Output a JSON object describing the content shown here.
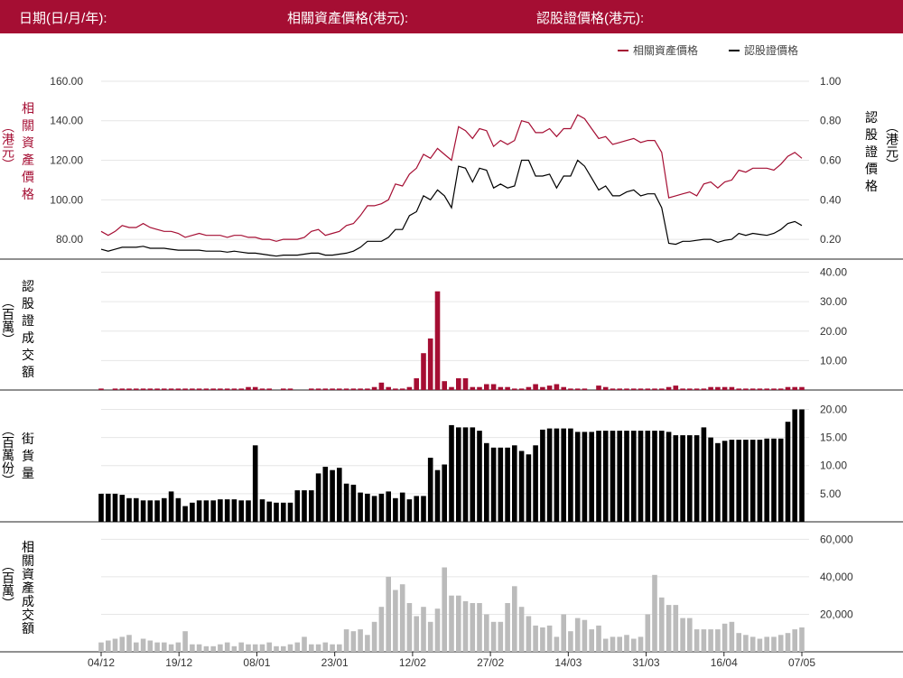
{
  "header": {
    "date_label": "日期(日/月/年):",
    "underlying_label": "相關資產價格(港元):",
    "warrant_label": "認股證價格(港元):"
  },
  "legend": {
    "underlying": "相關資產價格",
    "warrant": "認股證價格"
  },
  "colors": {
    "header_bg": "#a50e33",
    "underlying": "#a50e33",
    "warrant": "#000000",
    "turnover_bar": "#a50e33",
    "outstanding_bar": "#000000",
    "underlying_turnover_bar": "#bbbbbb"
  },
  "panel_labels": {
    "price_left": [
      "相",
      "關",
      "資",
      "產",
      "價",
      "格"
    ],
    "price_left_unit": "（港元）",
    "price_right": [
      "認",
      "股",
      "證",
      "價",
      "格"
    ],
    "price_right_unit": "（港元）",
    "turnover": [
      "認",
      "股",
      "證",
      "成",
      "交",
      "額"
    ],
    "turnover_unit": "（百萬）",
    "outstanding": [
      "街",
      "貨",
      "量"
    ],
    "outstanding_unit": "（百萬份）",
    "underlying_turnover": [
      "相",
      "關",
      "資",
      "產",
      "成",
      "交",
      "額"
    ],
    "underlying_turnover_unit": "（百萬）"
  },
  "chart_data": {
    "type": "line",
    "x_tick_labels": [
      "04/12",
      "19/12",
      "08/01",
      "23/01",
      "12/02",
      "27/02",
      "14/03",
      "31/03",
      "16/04",
      "07/05"
    ],
    "price_left_ticks": [
      "160.00",
      "140.00",
      "120.00",
      "100.00",
      "80.00"
    ],
    "price_left_range": [
      70,
      165
    ],
    "price_right_ticks": [
      "1.00",
      "0.80",
      "0.60",
      "0.40",
      "0.20"
    ],
    "price_right_range": [
      0.1,
      1.05
    ],
    "turnover_ticks": [
      "40.00",
      "30.00",
      "20.00",
      "10.00"
    ],
    "turnover_range": [
      0,
      42
    ],
    "outstanding_ticks": [
      "20.00",
      "15.00",
      "10.00",
      "5.00"
    ],
    "outstanding_range": [
      0,
      22
    ],
    "underlying_turnover_ticks": [
      "60,000",
      "40,000",
      "20,000"
    ],
    "underlying_turnover_range": [
      0,
      65000
    ],
    "underlying_price": [
      84,
      82,
      84,
      87,
      86,
      86,
      88,
      86,
      85,
      84,
      84,
      83,
      81,
      82,
      83,
      82,
      82,
      82,
      81,
      82,
      82,
      81,
      81,
      80,
      80,
      79,
      80,
      80,
      80,
      81,
      84,
      85,
      82,
      83,
      84,
      87,
      88,
      92,
      97,
      97,
      98,
      100,
      108,
      107,
      113,
      116,
      123,
      121,
      126,
      123,
      120,
      137,
      135,
      131,
      136,
      135,
      127,
      130,
      128,
      130,
      140,
      139,
      134,
      134,
      136,
      132,
      136,
      136,
      143,
      141,
      136,
      131,
      132,
      128,
      129,
      130,
      131,
      129,
      130,
      130,
      124,
      101,
      102,
      103,
      104,
      102,
      108,
      109,
      106,
      109,
      110,
      115,
      114,
      116,
      116,
      116,
      115,
      118,
      122,
      124,
      121
    ],
    "warrant_price": [
      0.15,
      0.14,
      0.15,
      0.16,
      0.16,
      0.16,
      0.165,
      0.155,
      0.155,
      0.155,
      0.15,
      0.145,
      0.145,
      0.145,
      0.145,
      0.14,
      0.14,
      0.14,
      0.135,
      0.14,
      0.135,
      0.13,
      0.13,
      0.125,
      0.12,
      0.115,
      0.12,
      0.12,
      0.12,
      0.125,
      0.13,
      0.13,
      0.12,
      0.12,
      0.125,
      0.13,
      0.14,
      0.16,
      0.19,
      0.19,
      0.19,
      0.21,
      0.25,
      0.25,
      0.32,
      0.34,
      0.42,
      0.4,
      0.45,
      0.42,
      0.36,
      0.57,
      0.56,
      0.49,
      0.56,
      0.55,
      0.46,
      0.48,
      0.46,
      0.47,
      0.6,
      0.6,
      0.52,
      0.52,
      0.53,
      0.46,
      0.52,
      0.52,
      0.6,
      0.57,
      0.51,
      0.45,
      0.47,
      0.42,
      0.42,
      0.44,
      0.45,
      0.42,
      0.43,
      0.43,
      0.36,
      0.18,
      0.175,
      0.19,
      0.19,
      0.195,
      0.2,
      0.2,
      0.185,
      0.195,
      0.2,
      0.23,
      0.22,
      0.23,
      0.225,
      0.22,
      0.23,
      0.25,
      0.28,
      0.29,
      0.27
    ],
    "warrant_turnover": [
      0.5,
      0,
      0.5,
      0.5,
      0.5,
      0.5,
      0.5,
      0.5,
      0.5,
      0.5,
      0.5,
      0.5,
      0.5,
      0.5,
      0.5,
      0.5,
      0.5,
      0.5,
      0.5,
      0.5,
      0.5,
      1,
      1,
      0.5,
      0.5,
      0,
      0.5,
      0.5,
      0,
      0,
      0.5,
      0.5,
      0.5,
      0.5,
      0.5,
      0.5,
      0.5,
      0.5,
      0.5,
      1,
      2.5,
      1,
      0.5,
      0.5,
      1,
      4,
      12.5,
      17.5,
      33.5,
      3,
      1,
      4,
      4,
      1,
      1,
      2,
      2,
      1,
      1,
      0.5,
      0.5,
      1,
      2,
      1,
      1.5,
      2,
      1,
      0.5,
      0.5,
      0.5,
      0,
      1.5,
      1,
      0.5,
      0.5,
      0.5,
      0.5,
      0.5,
      0.5,
      0.5,
      0.5,
      1,
      1.5,
      0.5,
      0.5,
      0.5,
      0.5,
      1,
      1,
      1,
      1,
      0.5,
      0.5,
      0.5,
      0.5,
      0.5,
      0.5,
      0.5,
      1,
      1,
      1
    ],
    "outstanding": [
      5,
      5,
      5,
      4.8,
      4.2,
      4.2,
      3.8,
      3.8,
      3.8,
      4.2,
      5.4,
      4.2,
      2.8,
      3.4,
      3.8,
      3.8,
      3.8,
      4,
      4,
      4,
      3.8,
      3.8,
      13.6,
      4,
      3.6,
      3.4,
      3.4,
      3.4,
      5.6,
      5.6,
      5.6,
      8.6,
      9.8,
      9.2,
      9.6,
      6.8,
      6.6,
      5.2,
      5,
      4.6,
      5,
      5.4,
      4.2,
      5.2,
      4,
      4.6,
      4.6,
      11.4,
      9.2,
      10.2,
      17.2,
      16.8,
      16.8,
      16.8,
      16.2,
      14,
      13.2,
      13.2,
      13.2,
      13.6,
      12.6,
      12,
      13.6,
      16.4,
      16.6,
      16.6,
      16.6,
      16.6,
      16,
      16,
      16,
      16.2,
      16.2,
      16.2,
      16.2,
      16.2,
      16.2,
      16.2,
      16.2,
      16.2,
      16.2,
      16,
      15.4,
      15.4,
      15.4,
      15.4,
      16.8,
      15,
      14,
      14.4,
      14.6,
      14.6,
      14.6,
      14.6,
      14.6,
      14.8,
      14.8,
      14.8,
      17.8,
      20,
      20
    ],
    "underlying_turnover": [
      5000,
      6000,
      7000,
      8000,
      9000,
      5000,
      7000,
      6000,
      5000,
      5000,
      4000,
      5000,
      11000,
      4000,
      4000,
      3000,
      3000,
      4000,
      5000,
      3000,
      5000,
      4000,
      4000,
      4000,
      5000,
      3000,
      3000,
      4000,
      5000,
      8000,
      4000,
      4000,
      5000,
      4000,
      4000,
      12000,
      11000,
      12000,
      9000,
      16000,
      24000,
      40000,
      33000,
      36000,
      26000,
      19000,
      24000,
      16000,
      23000,
      45000,
      30000,
      30000,
      27000,
      26000,
      26000,
      20000,
      16000,
      16000,
      26000,
      35000,
      24000,
      19000,
      14000,
      13000,
      14000,
      8000,
      20000,
      11000,
      18000,
      17000,
      12000,
      14000,
      7000,
      8000,
      8000,
      9000,
      7000,
      8000,
      20000,
      41000,
      29000,
      25000,
      25000,
      18000,
      18000,
      12000,
      12000,
      12000,
      12000,
      15000,
      16000,
      10000,
      9000,
      8000,
      7000,
      8000,
      8000,
      9000,
      10000,
      12000,
      13000
    ]
  }
}
